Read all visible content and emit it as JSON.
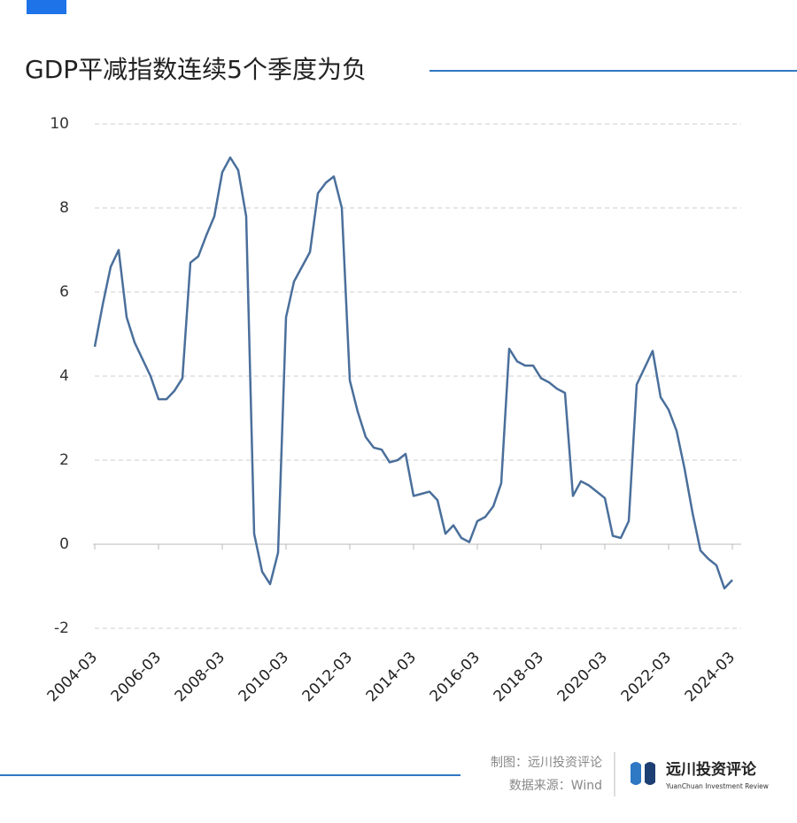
{
  "chart_data": {
    "type": "line",
    "title": "GDP平减指数连续5个季度为负",
    "categories": [
      "2004-03",
      null,
      null,
      null,
      null,
      null,
      null,
      null,
      "2006-03",
      null,
      null,
      null,
      null,
      null,
      null,
      null,
      "2008-03",
      null,
      null,
      null,
      null,
      null,
      null,
      null,
      "2010-03",
      null,
      null,
      null,
      null,
      null,
      null,
      null,
      "2012-03",
      null,
      null,
      null,
      null,
      null,
      null,
      null,
      "2014-03",
      null,
      null,
      null,
      null,
      null,
      null,
      null,
      "2016-03",
      null,
      null,
      null,
      null,
      null,
      null,
      null,
      "2018-03",
      null,
      null,
      null,
      null,
      null,
      null,
      null,
      "2020-03",
      null,
      null,
      null,
      null,
      null,
      null,
      null,
      "2022-03",
      null,
      null,
      null,
      null,
      null,
      null,
      null,
      "2024-03"
    ],
    "series": [
      {
        "color": "#4a6f9b",
        "values": [
          4.7,
          5.7,
          6.6,
          7.0,
          5.4,
          4.8,
          4.4,
          4.0,
          3.45,
          3.45,
          3.65,
          3.95,
          6.7,
          6.85,
          7.35,
          7.8,
          8.85,
          9.2,
          8.9,
          7.8,
          0.25,
          -0.65,
          -0.95,
          -0.2,
          5.4,
          6.25,
          6.6,
          6.95,
          8.35,
          8.6,
          8.75,
          8.0,
          3.9,
          3.15,
          2.55,
          2.3,
          2.25,
          1.95,
          2.0,
          2.15,
          1.15,
          1.2,
          1.25,
          1.05,
          0.25,
          0.45,
          0.15,
          0.05,
          0.55,
          0.65,
          0.9,
          1.45,
          4.65,
          4.35,
          4.25,
          4.25,
          3.95,
          3.85,
          3.7,
          3.6,
          1.15,
          1.5,
          1.4,
          1.25,
          1.1,
          0.2,
          0.15,
          0.55,
          3.8,
          4.2,
          4.6,
          3.5,
          3.2,
          2.7,
          1.8,
          0.75,
          -0.15,
          -0.35,
          -0.5,
          -1.05,
          -0.85
        ]
      }
    ],
    "ylim": [
      -2,
      10
    ],
    "yticks": [
      -2,
      0,
      2,
      4,
      6,
      8,
      10
    ],
    "grid": true,
    "footer": {
      "credit": "制图：远川投资评论",
      "source": "数据来源：Wind",
      "brand": "远川投资评论",
      "brand_en": "YuanChuan Investment Review"
    }
  }
}
